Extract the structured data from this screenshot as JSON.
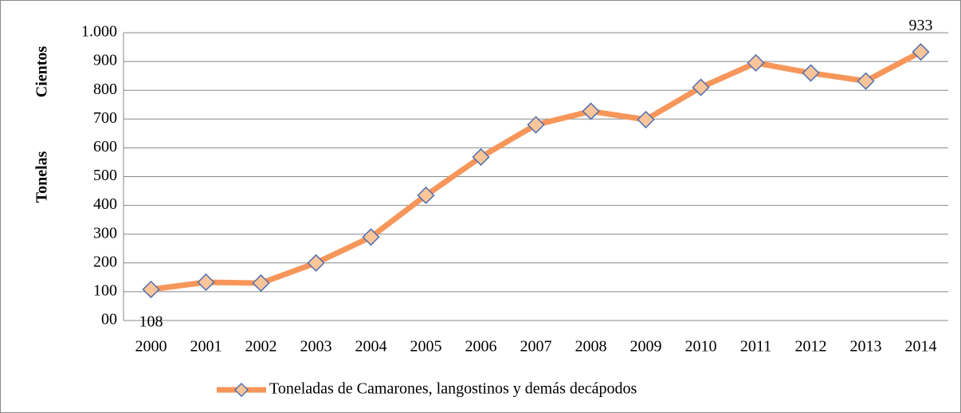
{
  "chart_data": {
    "type": "line",
    "ylabel": "Tonelas",
    "units_label": "Cientos",
    "categories": [
      "2000",
      "2001",
      "2002",
      "2003",
      "2004",
      "2005",
      "2006",
      "2007",
      "2008",
      "2009",
      "2010",
      "2011",
      "2012",
      "2013",
      "2014"
    ],
    "series": [
      {
        "name": "Toneladas de Camarones, langostinos y demás decápodos",
        "color": "#f7965a",
        "marker_color": "#fbc59a",
        "marker_edge": "#4f6fb0",
        "values": [
          108,
          133,
          130,
          200,
          290,
          435,
          568,
          680,
          727,
          698,
          810,
          895,
          860,
          832,
          933
        ]
      }
    ],
    "ylim": [
      0,
      1000
    ],
    "yticks": [
      {
        "value": 0,
        "label": "00"
      },
      100,
      200,
      300,
      400,
      500,
      600,
      700,
      800,
      900,
      {
        "value": 1000,
        "label": "1.000"
      }
    ],
    "grid": true,
    "legend": "bottom"
  }
}
